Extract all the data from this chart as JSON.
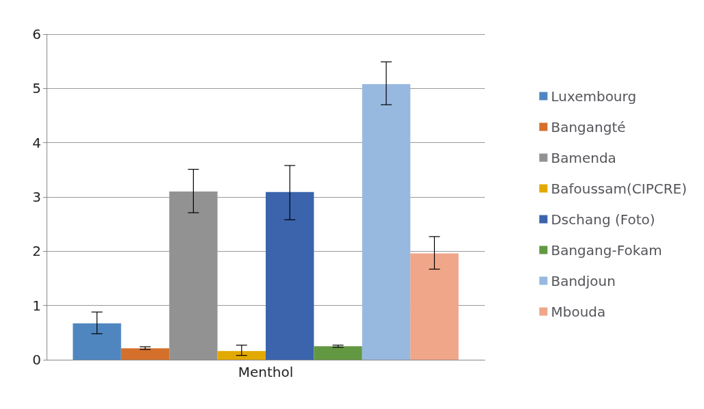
{
  "chart_data": {
    "type": "bar",
    "categories": [
      "Menthol"
    ],
    "series": [
      {
        "name": "Luxembourg",
        "color": "#4f86c0",
        "values": [
          0.67
        ],
        "errors": [
          [
            0.48,
            0.88
          ]
        ]
      },
      {
        "name": "Bangangté",
        "color": "#d4702c",
        "values": [
          0.21
        ],
        "errors": [
          [
            0.19,
            0.24
          ]
        ]
      },
      {
        "name": "Bamenda",
        "color": "#929292",
        "values": [
          3.1
        ],
        "errors": [
          [
            2.71,
            3.51
          ]
        ]
      },
      {
        "name": "Bafoussam(CIPCRE)",
        "color": "#e2a900",
        "values": [
          0.16
        ],
        "errors": [
          [
            0.08,
            0.27
          ]
        ]
      },
      {
        "name": "Dschang (Foto)",
        "color": "#3b64ad",
        "values": [
          3.09
        ],
        "errors": [
          [
            2.58,
            3.58
          ]
        ]
      },
      {
        "name": "Bangang-Fokam",
        "color": "#629841",
        "values": [
          0.25
        ],
        "errors": [
          [
            0.23,
            0.27
          ]
        ]
      },
      {
        "name": "Bandjoun",
        "color": "#97b9e0",
        "values": [
          5.08
        ],
        "errors": [
          [
            4.7,
            5.49
          ]
        ]
      },
      {
        "name": "Mbouda",
        "color": "#f0a688",
        "values": [
          1.96
        ],
        "errors": [
          [
            1.67,
            2.27
          ]
        ]
      }
    ],
    "ylim": [
      0,
      6
    ],
    "yticks": [
      0,
      1,
      2,
      3,
      4,
      5,
      6
    ],
    "grid": "y",
    "legend": "right"
  }
}
